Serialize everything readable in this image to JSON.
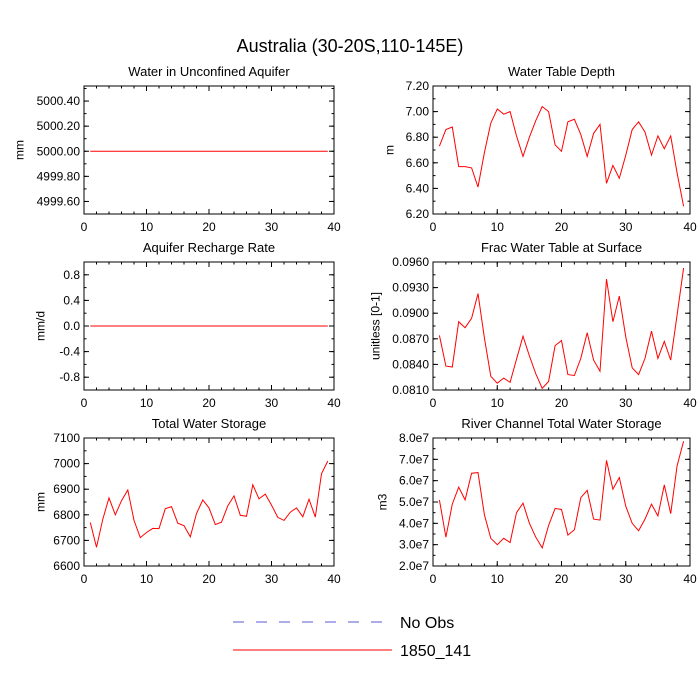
{
  "page_title": "Australia (30-20S,110-145E)",
  "legend": {
    "entries": [
      {
        "label": "No Obs",
        "color": "#5a5acd",
        "dash": true
      },
      {
        "label": "1850_141",
        "color": "#ff0000",
        "dash": false
      }
    ]
  },
  "chart_data": [
    {
      "type": "line",
      "title": "Water in Unconfined Aquifer",
      "ylabel": "mm",
      "xlim": [
        0,
        40
      ],
      "ylim": [
        4999.5,
        5000.52
      ],
      "xticks": [
        0,
        10,
        20,
        30,
        40
      ],
      "xtick_labels": [
        "0",
        "10",
        "20",
        "30",
        "40"
      ],
      "yticks": [
        4999.6,
        4999.8,
        5000.0,
        5000.2,
        5000.4
      ],
      "ytick_labels": [
        "4999.60",
        "4999.80",
        "5000.00",
        "5000.20",
        "5000.40"
      ],
      "series": [
        {
          "name": "1850_141",
          "color": "#ff0000",
          "x": [
            1,
            39
          ],
          "y": [
            5000.0,
            5000.0
          ]
        }
      ]
    },
    {
      "type": "line",
      "title": "Water Table Depth",
      "ylabel": "m",
      "xlim": [
        0,
        40
      ],
      "ylim": [
        6.2,
        7.2
      ],
      "xticks": [
        0,
        10,
        20,
        30,
        40
      ],
      "xtick_labels": [
        "0",
        "10",
        "20",
        "30",
        "40"
      ],
      "yticks": [
        6.2,
        6.4,
        6.6,
        6.8,
        7.0,
        7.2
      ],
      "ytick_labels": [
        "6.20",
        "6.40",
        "6.60",
        "6.80",
        "7.00",
        "7.20"
      ],
      "series": [
        {
          "name": "1850_141",
          "color": "#ff0000",
          "x": [
            1,
            2,
            3,
            4,
            5,
            6,
            7,
            8,
            9,
            10,
            11,
            12,
            13,
            14,
            15,
            16,
            17,
            18,
            19,
            20,
            21,
            22,
            23,
            24,
            25,
            26,
            27,
            28,
            29,
            30,
            31,
            32,
            33,
            34,
            35,
            36,
            37,
            38,
            39
          ],
          "y": [
            6.73,
            6.86,
            6.88,
            6.57,
            6.57,
            6.56,
            6.41,
            6.68,
            6.91,
            7.02,
            6.98,
            7.0,
            6.81,
            6.65,
            6.8,
            6.93,
            7.04,
            7.0,
            6.74,
            6.69,
            6.92,
            6.94,
            6.82,
            6.65,
            6.83,
            6.9,
            6.44,
            6.58,
            6.48,
            6.66,
            6.86,
            6.92,
            6.84,
            6.66,
            6.81,
            6.71,
            6.81,
            6.52,
            6.26
          ]
        }
      ]
    },
    {
      "type": "line",
      "title": "Aquifer Recharge Rate",
      "ylabel": "mm/d",
      "xlim": [
        0,
        40
      ],
      "ylim": [
        -1.0,
        1.0
      ],
      "xticks": [
        0,
        10,
        20,
        30,
        40
      ],
      "xtick_labels": [
        "0",
        "10",
        "20",
        "30",
        "40"
      ],
      "yticks": [
        -0.8,
        -0.4,
        0.0,
        0.4,
        0.8
      ],
      "ytick_labels": [
        "-0.8",
        "-0.4",
        "0.0",
        "0.4",
        "0.8"
      ],
      "series": [
        {
          "name": "1850_141",
          "color": "#ff0000",
          "x": [
            1,
            39
          ],
          "y": [
            0.0,
            0.0
          ]
        }
      ]
    },
    {
      "type": "line",
      "title": "Frac Water Table at Surface",
      "ylabel": "unitless [0-1]",
      "xlim": [
        0,
        40
      ],
      "ylim": [
        0.081,
        0.096
      ],
      "xticks": [
        0,
        10,
        20,
        30,
        40
      ],
      "xtick_labels": [
        "0",
        "10",
        "20",
        "30",
        "40"
      ],
      "yticks": [
        0.081,
        0.084,
        0.087,
        0.09,
        0.093,
        0.096
      ],
      "ytick_labels": [
        "0.0810",
        "0.0840",
        "0.0870",
        "0.0900",
        "0.0930",
        "0.0960"
      ],
      "series": [
        {
          "name": "1850_141",
          "color": "#ff0000",
          "x": [
            1,
            2,
            3,
            4,
            5,
            6,
            7,
            8,
            9,
            10,
            11,
            12,
            13,
            14,
            15,
            16,
            17,
            18,
            19,
            20,
            21,
            22,
            23,
            24,
            25,
            26,
            27,
            28,
            29,
            30,
            31,
            32,
            33,
            34,
            35,
            36,
            37,
            38,
            39
          ],
          "y": [
            0.0874,
            0.0838,
            0.0837,
            0.089,
            0.0883,
            0.0894,
            0.0923,
            0.0871,
            0.0826,
            0.0818,
            0.0824,
            0.0819,
            0.0846,
            0.0873,
            0.085,
            0.0829,
            0.0812,
            0.082,
            0.0862,
            0.0868,
            0.0828,
            0.0827,
            0.0847,
            0.0877,
            0.0845,
            0.0832,
            0.094,
            0.089,
            0.092,
            0.0872,
            0.0836,
            0.0828,
            0.0847,
            0.0879,
            0.0847,
            0.0867,
            0.0845,
            0.0898,
            0.0953
          ]
        }
      ]
    },
    {
      "type": "line",
      "title": "Total Water Storage",
      "ylabel": "mm",
      "xlim": [
        0,
        40
      ],
      "ylim": [
        6600,
        7100
      ],
      "xticks": [
        0,
        10,
        20,
        30,
        40
      ],
      "xtick_labels": [
        "0",
        "10",
        "20",
        "30",
        "40"
      ],
      "yticks": [
        6600,
        6700,
        6800,
        6900,
        7000,
        7100
      ],
      "ytick_labels": [
        "6600",
        "6700",
        "6800",
        "6900",
        "7000",
        "7100"
      ],
      "series": [
        {
          "name": "1850_141",
          "color": "#ff0000",
          "x": [
            1,
            2,
            3,
            4,
            5,
            6,
            7,
            8,
            9,
            10,
            11,
            12,
            13,
            14,
            15,
            16,
            17,
            18,
            19,
            20,
            21,
            22,
            23,
            24,
            25,
            26,
            27,
            28,
            29,
            30,
            31,
            32,
            33,
            34,
            35,
            36,
            37,
            38,
            39
          ],
          "y": [
            6770,
            6673,
            6783,
            6866,
            6800,
            6855,
            6897,
            6778,
            6711,
            6731,
            6747,
            6746,
            6824,
            6832,
            6767,
            6758,
            6714,
            6805,
            6858,
            6827,
            6762,
            6771,
            6835,
            6874,
            6798,
            6794,
            6917,
            6862,
            6881,
            6838,
            6790,
            6778,
            6810,
            6827,
            6792,
            6861,
            6791,
            6960,
            7010
          ]
        }
      ]
    },
    {
      "type": "line",
      "title": "River Channel Total Water Storage",
      "ylabel": "m3",
      "xlim": [
        0,
        40
      ],
      "ylim": [
        20000000,
        80000000
      ],
      "xticks": [
        0,
        10,
        20,
        30,
        40
      ],
      "xtick_labels": [
        "0",
        "10",
        "20",
        "30",
        "40"
      ],
      "yticks": [
        20000000,
        30000000,
        40000000,
        50000000,
        60000000,
        70000000,
        80000000
      ],
      "ytick_labels": [
        "2.0e7",
        "3.0e7",
        "4.0e7",
        "5.0e7",
        "6.0e7",
        "7.0e7",
        "8.0e7"
      ],
      "series": [
        {
          "name": "1850_141",
          "color": "#ff0000",
          "x": [
            1,
            2,
            3,
            4,
            5,
            6,
            7,
            8,
            9,
            10,
            11,
            12,
            13,
            14,
            15,
            16,
            17,
            18,
            19,
            20,
            21,
            22,
            23,
            24,
            25,
            26,
            27,
            28,
            29,
            30,
            31,
            32,
            33,
            34,
            35,
            36,
            37,
            38,
            39
          ],
          "y": [
            51000000,
            33500000,
            49000000,
            57000000,
            51000000,
            63500000,
            63800000,
            44000000,
            33000000,
            30000000,
            33000000,
            31000000,
            45000000,
            49500000,
            40000000,
            33500000,
            28500000,
            39000000,
            47000000,
            46500000,
            34500000,
            37000000,
            52000000,
            55500000,
            42000000,
            41500000,
            69500000,
            56000000,
            61500000,
            48000000,
            40000000,
            36500000,
            42000000,
            49000000,
            43500000,
            58000000,
            44500000,
            67000000,
            78500000
          ]
        }
      ]
    }
  ]
}
